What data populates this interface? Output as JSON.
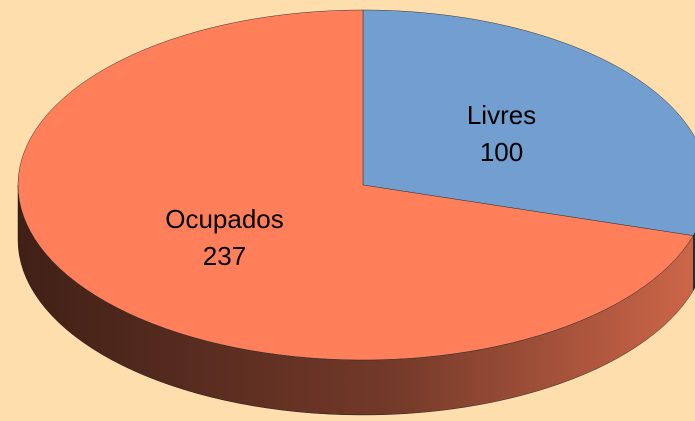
{
  "chart_data": {
    "type": "pie",
    "categories": [
      "Livres",
      "Ocupados"
    ],
    "values": [
      100,
      237
    ],
    "colors": [
      "#729fcf",
      "#ff7f5a"
    ]
  }
}
